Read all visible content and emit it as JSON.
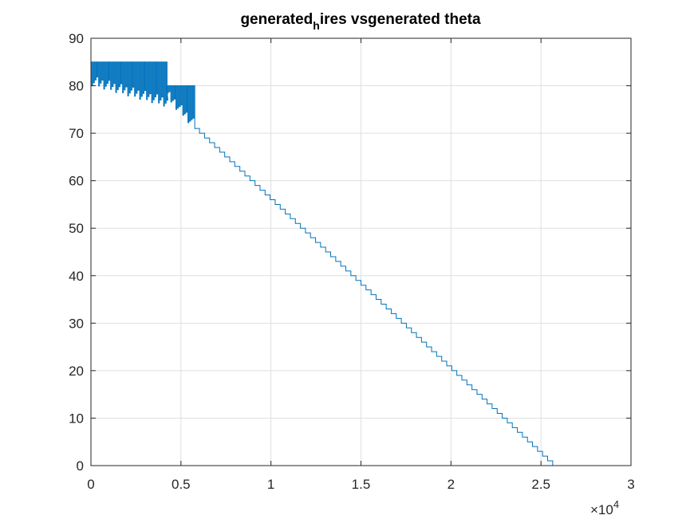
{
  "chart_data": {
    "type": "line",
    "title_main": "generated",
    "title_sub": "h",
    "title_rest": "ires vsgenerated theta",
    "xlabel": "",
    "ylabel": "",
    "xlim": [
      0,
      30000
    ],
    "ylim": [
      0,
      90
    ],
    "x_ticks": [
      0,
      5000,
      10000,
      15000,
      20000,
      25000,
      30000
    ],
    "x_tick_labels": [
      "0",
      "0.5",
      "1",
      "1.5",
      "2",
      "2.5",
      "3"
    ],
    "y_ticks": [
      0,
      10,
      20,
      30,
      40,
      50,
      60,
      70,
      80,
      90
    ],
    "y_tick_labels": [
      "0",
      "10",
      "20",
      "30",
      "40",
      "50",
      "60",
      "70",
      "80",
      "90"
    ],
    "x_exponent_base": "×10",
    "x_exponent_power": "4",
    "grid": true,
    "line_color": "#0072BD",
    "series": [
      {
        "oscillating_segments": [
          {
            "x_start": 0,
            "x_end": 4200,
            "high": 85,
            "low_start": 80,
            "low_end": 75.5,
            "period": 95
          },
          {
            "x_start": 4200,
            "x_end": 5750,
            "high": 80,
            "low_start": 77,
            "low_end": 70.5,
            "period": 95
          }
        ],
        "staircase": {
          "x_start": 5750,
          "x_end": 25650,
          "y_start": 71,
          "y_end": 0
        }
      }
    ]
  }
}
